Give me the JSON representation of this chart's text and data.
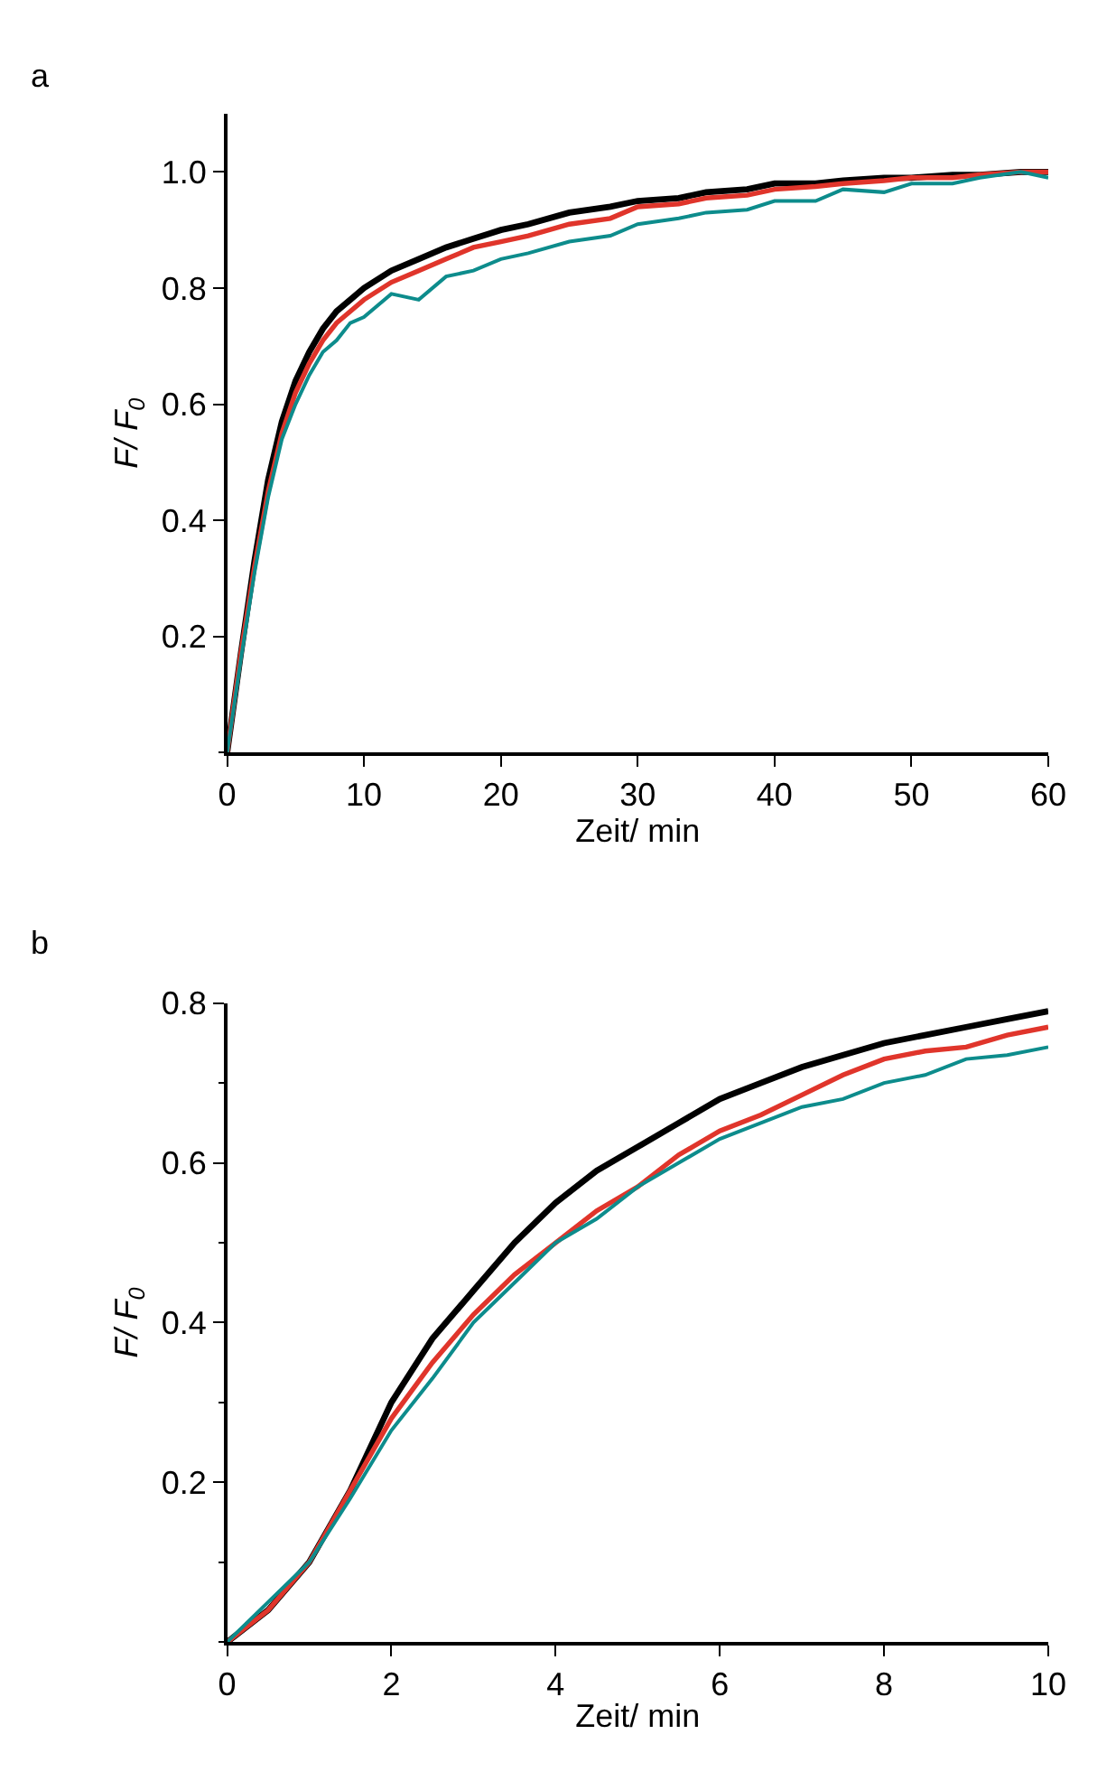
{
  "chart_data": [
    {
      "type": "line",
      "title": "a",
      "xlabel": "Zeit/ min",
      "ylabel": "F/ F$_{0}$",
      "xlim": [
        0,
        60
      ],
      "xticks": [
        0,
        10,
        20,
        30,
        40,
        50,
        60
      ],
      "ylim": [
        0,
        1.1
      ],
      "yticks": [
        0.2,
        0.4,
        0.6,
        0.8,
        {
          "value": 1.0,
          "label": "1.0"
        }
      ],
      "x": [
        0,
        1,
        2,
        3,
        4,
        5,
        6,
        7,
        8,
        9,
        10,
        12,
        14,
        16,
        18,
        20,
        22,
        25,
        28,
        30,
        33,
        35,
        38,
        40,
        43,
        45,
        48,
        50,
        53,
        55,
        58,
        60
      ],
      "series": [
        {
          "color": "#000000",
          "values": [
            0,
            0.17,
            0.33,
            0.47,
            0.57,
            0.64,
            0.69,
            0.73,
            0.76,
            0.78,
            0.8,
            0.83,
            0.85,
            0.87,
            0.885,
            0.9,
            0.91,
            0.93,
            0.94,
            0.95,
            0.955,
            0.965,
            0.97,
            0.98,
            0.98,
            0.985,
            0.99,
            0.99,
            0.995,
            0.995,
            1.0,
            1.0
          ]
        },
        {
          "color": "#e0352b",
          "values": [
            0,
            0.17,
            0.32,
            0.45,
            0.55,
            0.62,
            0.67,
            0.71,
            0.74,
            0.76,
            0.78,
            0.81,
            0.83,
            0.85,
            0.87,
            0.88,
            0.89,
            0.91,
            0.92,
            0.94,
            0.945,
            0.955,
            0.96,
            0.97,
            0.975,
            0.98,
            0.985,
            0.99,
            0.99,
            0.995,
            1.0,
            1.0
          ]
        },
        {
          "color": "#0d8c8c",
          "values": [
            0,
            0.16,
            0.31,
            0.44,
            0.54,
            0.6,
            0.65,
            0.69,
            0.71,
            0.74,
            0.75,
            0.79,
            0.78,
            0.82,
            0.83,
            0.85,
            0.86,
            0.88,
            0.89,
            0.91,
            0.92,
            0.93,
            0.935,
            0.95,
            0.95,
            0.97,
            0.965,
            0.98,
            0.98,
            0.99,
            1.0,
            0.99
          ]
        }
      ]
    },
    {
      "type": "line",
      "title": "b",
      "xlabel": "Zeit/ min",
      "ylabel": "F/ F$_{0}$",
      "xlim": [
        0,
        10
      ],
      "xticks": [
        0,
        2,
        4,
        6,
        8,
        10
      ],
      "ylim": [
        0,
        0.8
      ],
      "yticks": [
        0.2,
        0.4,
        0.6,
        0.8
      ],
      "x": [
        0,
        0.5,
        1,
        1.5,
        2,
        2.5,
        3,
        3.5,
        4,
        4.5,
        5,
        5.5,
        6,
        6.5,
        7,
        7.5,
        8,
        8.5,
        9,
        9.5,
        10
      ],
      "series": [
        {
          "color": "#000000",
          "values": [
            0,
            0.04,
            0.1,
            0.19,
            0.3,
            0.38,
            0.44,
            0.5,
            0.55,
            0.59,
            0.62,
            0.65,
            0.68,
            0.7,
            0.72,
            0.735,
            0.75,
            0.76,
            0.77,
            0.78,
            0.79
          ]
        },
        {
          "color": "#e0352b",
          "values": [
            0,
            0.04,
            0.1,
            0.19,
            0.28,
            0.35,
            0.41,
            0.46,
            0.5,
            0.54,
            0.57,
            0.61,
            0.64,
            0.66,
            0.685,
            0.71,
            0.73,
            0.74,
            0.745,
            0.76,
            0.77
          ]
        },
        {
          "color": "#0d8c8c",
          "values": [
            0,
            0.05,
            0.1,
            0.18,
            0.265,
            0.33,
            0.4,
            0.45,
            0.5,
            0.53,
            0.57,
            0.6,
            0.63,
            0.65,
            0.67,
            0.68,
            0.7,
            0.71,
            0.73,
            0.735,
            0.745
          ]
        }
      ]
    }
  ]
}
